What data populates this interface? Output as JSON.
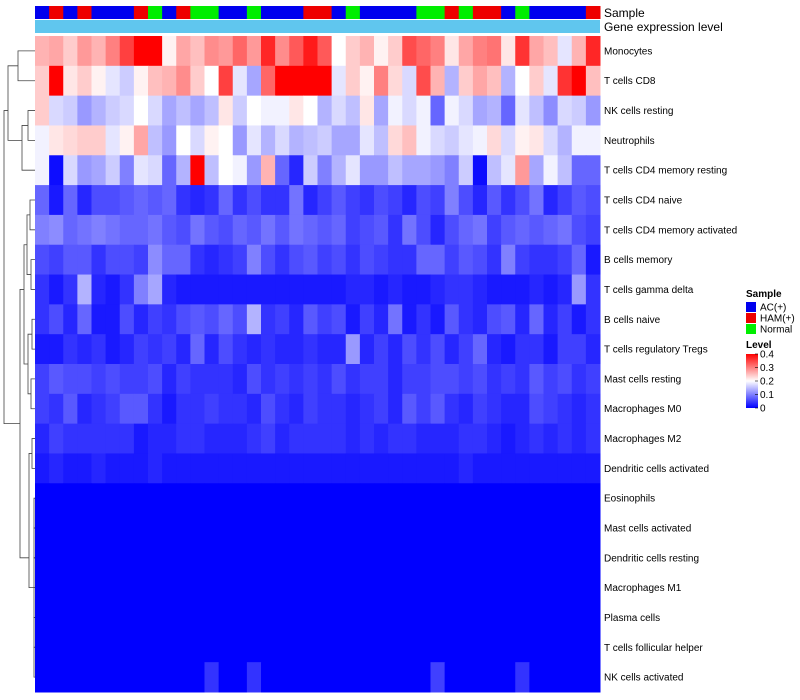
{
  "chart_data": {
    "type": "heatmap",
    "annotation_titles": [
      "Sample",
      "Gene expression level"
    ],
    "row_labels": [
      "Monocytes",
      "T cells CD8",
      "NK cells resting",
      "Neutrophils",
      "T cells CD4 memory resting",
      "T cells CD4 naive",
      "T cells CD4 memory activated",
      "B cells memory",
      "T cells gamma delta",
      "B cells naive",
      "T cells regulatory  Tregs",
      "Mast cells resting",
      "Macrophages M0",
      "Macrophages M2",
      "Dendritic cells activated",
      "Eosinophils",
      "Mast cells activated",
      "Dendritic cells resting",
      "Macrophages M1",
      "Plasma cells",
      "T cells follicular helper",
      "NK cells activated"
    ],
    "sample_groups": [
      "AC(+)",
      "HAM(+)",
      "AC(+)",
      "HAM(+)",
      "AC(+)",
      "AC(+)",
      "AC(+)",
      "HAM(+)",
      "Normal",
      "AC(+)",
      "HAM(+)",
      "Normal",
      "Normal",
      "AC(+)",
      "AC(+)",
      "Normal",
      "AC(+)",
      "AC(+)",
      "AC(+)",
      "HAM(+)",
      "HAM(+)",
      "AC(+)",
      "Normal",
      "AC(+)",
      "AC(+)",
      "AC(+)",
      "AC(+)",
      "Normal",
      "Normal",
      "HAM(+)",
      "Normal",
      "HAM(+)",
      "HAM(+)",
      "AC(+)",
      "Normal",
      "AC(+)",
      "AC(+)",
      "AC(+)",
      "AC(+)",
      "HAM(+)"
    ],
    "expression_level_color": "#60c6ee",
    "legend": {
      "sample_title": "Sample",
      "sample_entries": [
        {
          "label": "AC(+)",
          "color": "#0000ee"
        },
        {
          "label": "HAM(+)",
          "color": "#ee0000"
        },
        {
          "label": "Normal",
          "color": "#00ee00"
        }
      ],
      "level_title": "Level",
      "level_ticks": [
        "0.4",
        "0.3",
        "0.2",
        "0.1",
        "0"
      ],
      "level_range": [
        0,
        0.4
      ]
    },
    "color_scale": {
      "low": "#0000ff",
      "mid": "#ffffff",
      "high": "#ff0000",
      "midpoint": 0.2
    },
    "values": [
      [
        0.26,
        0.27,
        0.24,
        0.28,
        0.26,
        0.3,
        0.35,
        0.4,
        0.4,
        0.21,
        0.27,
        0.25,
        0.29,
        0.28,
        0.32,
        0.28,
        0.37,
        0.29,
        0.33,
        0.38,
        0.33,
        0.2,
        0.24,
        0.26,
        0.21,
        0.24,
        0.34,
        0.32,
        0.3,
        0.22,
        0.27,
        0.3,
        0.31,
        0.22,
        0.36,
        0.27,
        0.25,
        0.18,
        0.26,
        0.37
      ],
      [
        0.24,
        0.4,
        0.22,
        0.24,
        0.21,
        0.18,
        0.16,
        0.21,
        0.25,
        0.26,
        0.29,
        0.24,
        0.2,
        0.35,
        0.18,
        0.13,
        0.32,
        0.4,
        0.4,
        0.4,
        0.4,
        0.18,
        0.24,
        0.21,
        0.3,
        0.23,
        0.17,
        0.34,
        0.26,
        0.14,
        0.24,
        0.27,
        0.25,
        0.14,
        0.2,
        0.24,
        0.18,
        0.36,
        0.4,
        0.25
      ],
      [
        0.24,
        0.17,
        0.16,
        0.12,
        0.14,
        0.16,
        0.17,
        0.2,
        0.17,
        0.13,
        0.15,
        0.13,
        0.15,
        0.22,
        0.16,
        0.2,
        0.19,
        0.19,
        0.22,
        0.2,
        0.14,
        0.17,
        0.15,
        0.22,
        0.13,
        0.19,
        0.17,
        0.19,
        0.08,
        0.19,
        0.17,
        0.13,
        0.14,
        0.08,
        0.18,
        0.15,
        0.11,
        0.17,
        0.16,
        0.12
      ],
      [
        0.19,
        0.22,
        0.23,
        0.24,
        0.24,
        0.18,
        0.21,
        0.27,
        0.15,
        0.12,
        0.2,
        0.17,
        0.21,
        0.2,
        0.12,
        0.18,
        0.14,
        0.17,
        0.14,
        0.15,
        0.16,
        0.13,
        0.13,
        0.18,
        0.15,
        0.23,
        0.25,
        0.19,
        0.17,
        0.16,
        0.18,
        0.19,
        0.23,
        0.17,
        0.21,
        0.22,
        0.17,
        0.14,
        0.19,
        0.19
      ],
      [
        0.19,
        0.01,
        0.17,
        0.12,
        0.13,
        0.16,
        0.1,
        0.18,
        0.17,
        0.08,
        0.14,
        0.4,
        0.15,
        0.2,
        0.19,
        0.12,
        0.26,
        0.08,
        0.03,
        0.16,
        0.1,
        0.14,
        0.18,
        0.12,
        0.12,
        0.15,
        0.13,
        0.13,
        0.12,
        0.1,
        0.16,
        0.01,
        0.15,
        0.18,
        0.28,
        0.13,
        0.19,
        0.15,
        0.08,
        0.08
      ],
      [
        0.08,
        0.02,
        0.08,
        0.03,
        0.06,
        0.06,
        0.07,
        0.08,
        0.07,
        0.08,
        0.04,
        0.03,
        0.04,
        0.08,
        0.04,
        0.06,
        0.04,
        0.04,
        0.09,
        0.03,
        0.05,
        0.07,
        0.05,
        0.04,
        0.06,
        0.05,
        0.03,
        0.06,
        0.05,
        0.1,
        0.06,
        0.03,
        0.07,
        0.04,
        0.06,
        0.09,
        0.03,
        0.05,
        0.07,
        0.06
      ],
      [
        0.1,
        0.11,
        0.08,
        0.09,
        0.1,
        0.09,
        0.08,
        0.08,
        0.09,
        0.07,
        0.06,
        0.09,
        0.07,
        0.06,
        0.08,
        0.07,
        0.09,
        0.07,
        0.09,
        0.08,
        0.07,
        0.08,
        0.05,
        0.06,
        0.07,
        0.04,
        0.09,
        0.06,
        0.03,
        0.06,
        0.08,
        0.09,
        0.05,
        0.07,
        0.08,
        0.07,
        0.08,
        0.09,
        0.06,
        0.05
      ],
      [
        0.06,
        0.05,
        0.07,
        0.07,
        0.04,
        0.06,
        0.06,
        0.05,
        0.11,
        0.08,
        0.08,
        0.04,
        0.03,
        0.04,
        0.05,
        0.1,
        0.06,
        0.04,
        0.06,
        0.07,
        0.05,
        0.06,
        0.04,
        0.06,
        0.05,
        0.04,
        0.04,
        0.08,
        0.08,
        0.05,
        0.07,
        0.06,
        0.04,
        0.1,
        0.05,
        0.04,
        0.04,
        0.05,
        0.08,
        0.02
      ],
      [
        0.04,
        0.02,
        0.04,
        0.14,
        0.03,
        0.02,
        0.04,
        0.1,
        0.13,
        0.03,
        0.02,
        0.02,
        0.02,
        0.02,
        0.02,
        0.02,
        0.02,
        0.02,
        0.02,
        0.02,
        0.02,
        0.02,
        0.03,
        0.03,
        0.02,
        0.03,
        0.02,
        0.02,
        0.03,
        0.04,
        0.04,
        0.03,
        0.02,
        0.02,
        0.02,
        0.03,
        0.02,
        0.03,
        0.12,
        0.04
      ],
      [
        0.04,
        0.06,
        0.03,
        0.08,
        0.02,
        0.02,
        0.06,
        0.03,
        0.05,
        0.04,
        0.06,
        0.07,
        0.06,
        0.08,
        0.06,
        0.14,
        0.04,
        0.05,
        0.03,
        0.07,
        0.05,
        0.06,
        0.02,
        0.05,
        0.03,
        0.09,
        0.02,
        0.04,
        0.02,
        0.07,
        0.04,
        0.03,
        0.06,
        0.07,
        0.03,
        0.08,
        0.03,
        0.05,
        0.02,
        0.04
      ],
      [
        0.02,
        0.02,
        0.04,
        0.03,
        0.04,
        0.02,
        0.03,
        0.05,
        0.04,
        0.05,
        0.03,
        0.08,
        0.03,
        0.06,
        0.04,
        0.03,
        0.04,
        0.03,
        0.03,
        0.04,
        0.03,
        0.03,
        0.12,
        0.03,
        0.05,
        0.03,
        0.06,
        0.04,
        0.06,
        0.03,
        0.05,
        0.08,
        0.03,
        0.02,
        0.04,
        0.04,
        0.02,
        0.05,
        0.05,
        0.03
      ],
      [
        0.05,
        0.07,
        0.06,
        0.06,
        0.05,
        0.06,
        0.05,
        0.05,
        0.06,
        0.03,
        0.05,
        0.04,
        0.04,
        0.04,
        0.03,
        0.06,
        0.04,
        0.05,
        0.04,
        0.05,
        0.04,
        0.06,
        0.04,
        0.05,
        0.05,
        0.03,
        0.05,
        0.05,
        0.06,
        0.06,
        0.05,
        0.06,
        0.04,
        0.05,
        0.04,
        0.07,
        0.05,
        0.06,
        0.04,
        0.05
      ],
      [
        0.05,
        0.04,
        0.07,
        0.03,
        0.04,
        0.05,
        0.07,
        0.07,
        0.04,
        0.02,
        0.04,
        0.04,
        0.05,
        0.04,
        0.04,
        0.03,
        0.06,
        0.04,
        0.03,
        0.05,
        0.04,
        0.04,
        0.03,
        0.04,
        0.05,
        0.03,
        0.07,
        0.05,
        0.07,
        0.04,
        0.03,
        0.05,
        0.04,
        0.03,
        0.03,
        0.06,
        0.05,
        0.04,
        0.03,
        0.04
      ],
      [
        0.03,
        0.05,
        0.04,
        0.04,
        0.04,
        0.04,
        0.04,
        0.02,
        0.03,
        0.03,
        0.04,
        0.04,
        0.03,
        0.03,
        0.03,
        0.04,
        0.05,
        0.03,
        0.04,
        0.04,
        0.04,
        0.04,
        0.03,
        0.04,
        0.03,
        0.04,
        0.04,
        0.03,
        0.03,
        0.03,
        0.04,
        0.04,
        0.03,
        0.02,
        0.03,
        0.04,
        0.03,
        0.04,
        0.03,
        0.04
      ],
      [
        0.02,
        0.03,
        0.02,
        0.02,
        0.03,
        0.02,
        0.02,
        0.02,
        0.03,
        0.02,
        0.02,
        0.02,
        0.02,
        0.02,
        0.02,
        0.02,
        0.02,
        0.02,
        0.02,
        0.02,
        0.02,
        0.02,
        0.02,
        0.02,
        0.02,
        0.02,
        0.02,
        0.02,
        0.02,
        0.02,
        0.03,
        0.02,
        0.02,
        0.02,
        0.02,
        0.02,
        0.02,
        0.02,
        0.02,
        0.02
      ],
      [
        0,
        0,
        0,
        0,
        0,
        0,
        0,
        0,
        0,
        0,
        0,
        0,
        0,
        0,
        0,
        0,
        0,
        0,
        0,
        0,
        0,
        0,
        0,
        0,
        0,
        0,
        0,
        0,
        0,
        0,
        0,
        0,
        0,
        0,
        0,
        0,
        0,
        0,
        0,
        0
      ],
      [
        0,
        0,
        0,
        0,
        0,
        0,
        0,
        0,
        0,
        0,
        0,
        0,
        0,
        0,
        0,
        0,
        0,
        0,
        0,
        0,
        0,
        0,
        0,
        0,
        0,
        0,
        0,
        0,
        0,
        0,
        0,
        0,
        0,
        0,
        0,
        0,
        0,
        0,
        0,
        0
      ],
      [
        0,
        0,
        0,
        0,
        0,
        0,
        0,
        0,
        0,
        0,
        0,
        0,
        0,
        0,
        0,
        0,
        0,
        0,
        0,
        0,
        0,
        0,
        0,
        0,
        0,
        0,
        0,
        0,
        0,
        0,
        0,
        0,
        0,
        0,
        0,
        0,
        0,
        0,
        0,
        0
      ],
      [
        0,
        0,
        0,
        0,
        0,
        0,
        0,
        0,
        0,
        0,
        0,
        0,
        0,
        0,
        0,
        0,
        0,
        0,
        0,
        0,
        0,
        0,
        0,
        0,
        0,
        0,
        0,
        0,
        0,
        0,
        0,
        0,
        0,
        0,
        0,
        0,
        0,
        0,
        0,
        0
      ],
      [
        0,
        0,
        0,
        0,
        0,
        0,
        0,
        0,
        0,
        0,
        0,
        0,
        0,
        0,
        0,
        0,
        0,
        0,
        0,
        0,
        0,
        0,
        0,
        0,
        0,
        0,
        0,
        0,
        0,
        0,
        0,
        0,
        0,
        0,
        0,
        0,
        0,
        0,
        0,
        0
      ],
      [
        0,
        0,
        0,
        0,
        0,
        0,
        0,
        0,
        0,
        0,
        0,
        0,
        0,
        0,
        0,
        0,
        0,
        0,
        0,
        0,
        0,
        0,
        0,
        0,
        0,
        0,
        0,
        0,
        0,
        0,
        0,
        0,
        0,
        0,
        0,
        0,
        0,
        0,
        0,
        0
      ],
      [
        0,
        0,
        0,
        0,
        0,
        0,
        0,
        0,
        0,
        0,
        0,
        0,
        0.04,
        0,
        0,
        0.04,
        0,
        0,
        0,
        0,
        0,
        0,
        0,
        0,
        0,
        0,
        0,
        0,
        0.05,
        0,
        0,
        0,
        0,
        0,
        0.04,
        0,
        0,
        0,
        0,
        0
      ]
    ],
    "x_labels": [],
    "axis_note": "columns are unlabelled samples; rows are hierarchically clustered (dendrogram at left)"
  }
}
